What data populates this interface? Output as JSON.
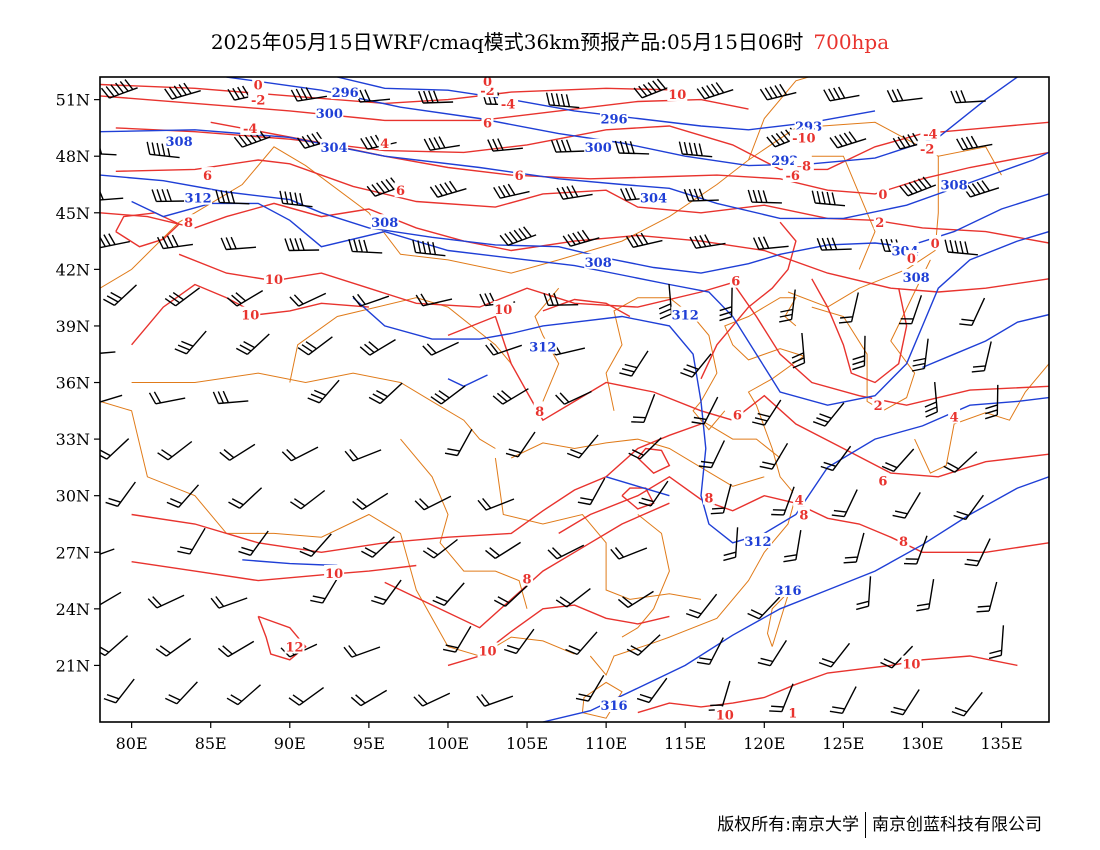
{
  "title": {
    "main": "2025年05月15日WRF/cmaq模式36km预报产品:05月15日06时",
    "level": "700hpa"
  },
  "map": {
    "lon_ticks": [
      "80E",
      "85E",
      "90E",
      "95E",
      "100E",
      "105E",
      "110E",
      "115E",
      "120E",
      "125E",
      "130E",
      "135E"
    ],
    "lat_ticks": [
      "51N",
      "48N",
      "45N",
      "42N",
      "39N",
      "36N",
      "33N",
      "30N",
      "27N",
      "24N",
      "21N"
    ],
    "height_contour_labels": [
      "296",
      "300",
      "304",
      "308",
      "312",
      "316",
      "296",
      "300",
      "304",
      "308",
      "312",
      "316",
      "304",
      "308",
      "312",
      "296",
      "300",
      "304",
      "308",
      "312",
      "316",
      "304",
      "308",
      "312"
    ],
    "height_label_items": [
      {
        "text": "296",
        "lon": 93.5,
        "lat": 51.4
      },
      {
        "text": "300",
        "lon": 92.5,
        "lat": 50.3
      },
      {
        "text": "296",
        "lon": 110.5,
        "lat": 50.0
      },
      {
        "text": "293",
        "lon": 122.8,
        "lat": 49.6
      },
      {
        "text": "292",
        "lon": 121.3,
        "lat": 47.8
      },
      {
        "text": "308",
        "lon": 83.0,
        "lat": 48.8
      },
      {
        "text": "304",
        "lon": 92.8,
        "lat": 48.5
      },
      {
        "text": "300",
        "lon": 109.5,
        "lat": 48.5
      },
      {
        "text": "304",
        "lon": 113.0,
        "lat": 45.8
      },
      {
        "text": "312",
        "lon": 84.2,
        "lat": 45.8
      },
      {
        "text": "308",
        "lon": 96.0,
        "lat": 44.5
      },
      {
        "text": "308",
        "lon": 109.5,
        "lat": 42.4
      },
      {
        "text": "304",
        "lon": 128.9,
        "lat": 43.0
      },
      {
        "text": "308",
        "lon": 129.6,
        "lat": 41.6
      },
      {
        "text": "308",
        "lon": 132.0,
        "lat": 46.5
      },
      {
        "text": "312",
        "lon": 115.0,
        "lat": 39.6
      },
      {
        "text": "312",
        "lon": 106.0,
        "lat": 37.9
      },
      {
        "text": "312",
        "lon": 119.6,
        "lat": 27.6
      },
      {
        "text": "316",
        "lon": 121.5,
        "lat": 25.0
      },
      {
        "text": "316",
        "lon": 110.5,
        "lat": 18.9
      }
    ],
    "temp_label_items": [
      {
        "text": "0",
        "lon": 88.0,
        "lat": 51.8
      },
      {
        "text": "-2",
        "lon": 88.0,
        "lat": 51.0
      },
      {
        "text": "-4",
        "lon": 103.8,
        "lat": 50.8
      },
      {
        "text": "-2",
        "lon": 102.5,
        "lat": 51.5
      },
      {
        "text": "0",
        "lon": 102.5,
        "lat": 52.0
      },
      {
        "text": "10",
        "lon": 114.5,
        "lat": 51.3
      },
      {
        "text": "-4",
        "lon": 87.5,
        "lat": 49.5
      },
      {
        "text": "6",
        "lon": 102.5,
        "lat": 49.8
      },
      {
        "text": "4",
        "lon": 96.0,
        "lat": 48.7
      },
      {
        "text": "6",
        "lon": 104.5,
        "lat": 47.0
      },
      {
        "text": "6",
        "lon": 84.8,
        "lat": 47.0
      },
      {
        "text": "6",
        "lon": 97.0,
        "lat": 46.2
      },
      {
        "text": "8",
        "lon": 83.6,
        "lat": 44.5
      },
      {
        "text": "-10",
        "lon": 122.5,
        "lat": 49.0
      },
      {
        "text": "-8",
        "lon": 122.5,
        "lat": 47.5
      },
      {
        "text": "-6",
        "lon": 121.8,
        "lat": 47.0
      },
      {
        "text": "-4",
        "lon": 130.5,
        "lat": 49.2
      },
      {
        "text": "-2",
        "lon": 130.3,
        "lat": 48.4
      },
      {
        "text": "0",
        "lon": 127.5,
        "lat": 46.0
      },
      {
        "text": "2",
        "lon": 127.3,
        "lat": 44.5
      },
      {
        "text": "0",
        "lon": 130.8,
        "lat": 43.4
      },
      {
        "text": "0",
        "lon": 129.3,
        "lat": 42.6
      },
      {
        "text": "10",
        "lon": 89.0,
        "lat": 41.5
      },
      {
        "text": "10",
        "lon": 87.5,
        "lat": 39.6
      },
      {
        "text": "10",
        "lon": 103.5,
        "lat": 39.9
      },
      {
        "text": "6",
        "lon": 118.2,
        "lat": 41.4
      },
      {
        "text": "8",
        "lon": 105.8,
        "lat": 34.5
      },
      {
        "text": "6",
        "lon": 118.3,
        "lat": 34.3
      },
      {
        "text": "2",
        "lon": 127.2,
        "lat": 34.8
      },
      {
        "text": "4",
        "lon": 132.0,
        "lat": 34.2
      },
      {
        "text": "8",
        "lon": 116.5,
        "lat": 29.9
      },
      {
        "text": "4",
        "lon": 122.2,
        "lat": 29.8
      },
      {
        "text": "6",
        "lon": 127.5,
        "lat": 30.8
      },
      {
        "text": "8",
        "lon": 122.5,
        "lat": 29.0
      },
      {
        "text": "8",
        "lon": 128.8,
        "lat": 27.6
      },
      {
        "text": "10",
        "lon": 92.8,
        "lat": 25.9
      },
      {
        "text": "8",
        "lon": 105.0,
        "lat": 25.6
      },
      {
        "text": "12",
        "lon": 90.3,
        "lat": 22.0
      },
      {
        "text": "10",
        "lon": 102.5,
        "lat": 21.8
      },
      {
        "text": "10",
        "lon": 129.3,
        "lat": 21.1
      },
      {
        "text": "10",
        "lon": 117.5,
        "lat": 18.4
      },
      {
        "text": "1",
        "lon": 121.8,
        "lat": 18.5
      }
    ]
  },
  "copyright": {
    "left": "版权所有:南京大学",
    "right": "南京创蓝科技有限公司"
  },
  "colors": {
    "height": "#1f3fd6",
    "temperature": "#e8332e",
    "boundary": "#e07b1a",
    "wind": "#000000"
  }
}
